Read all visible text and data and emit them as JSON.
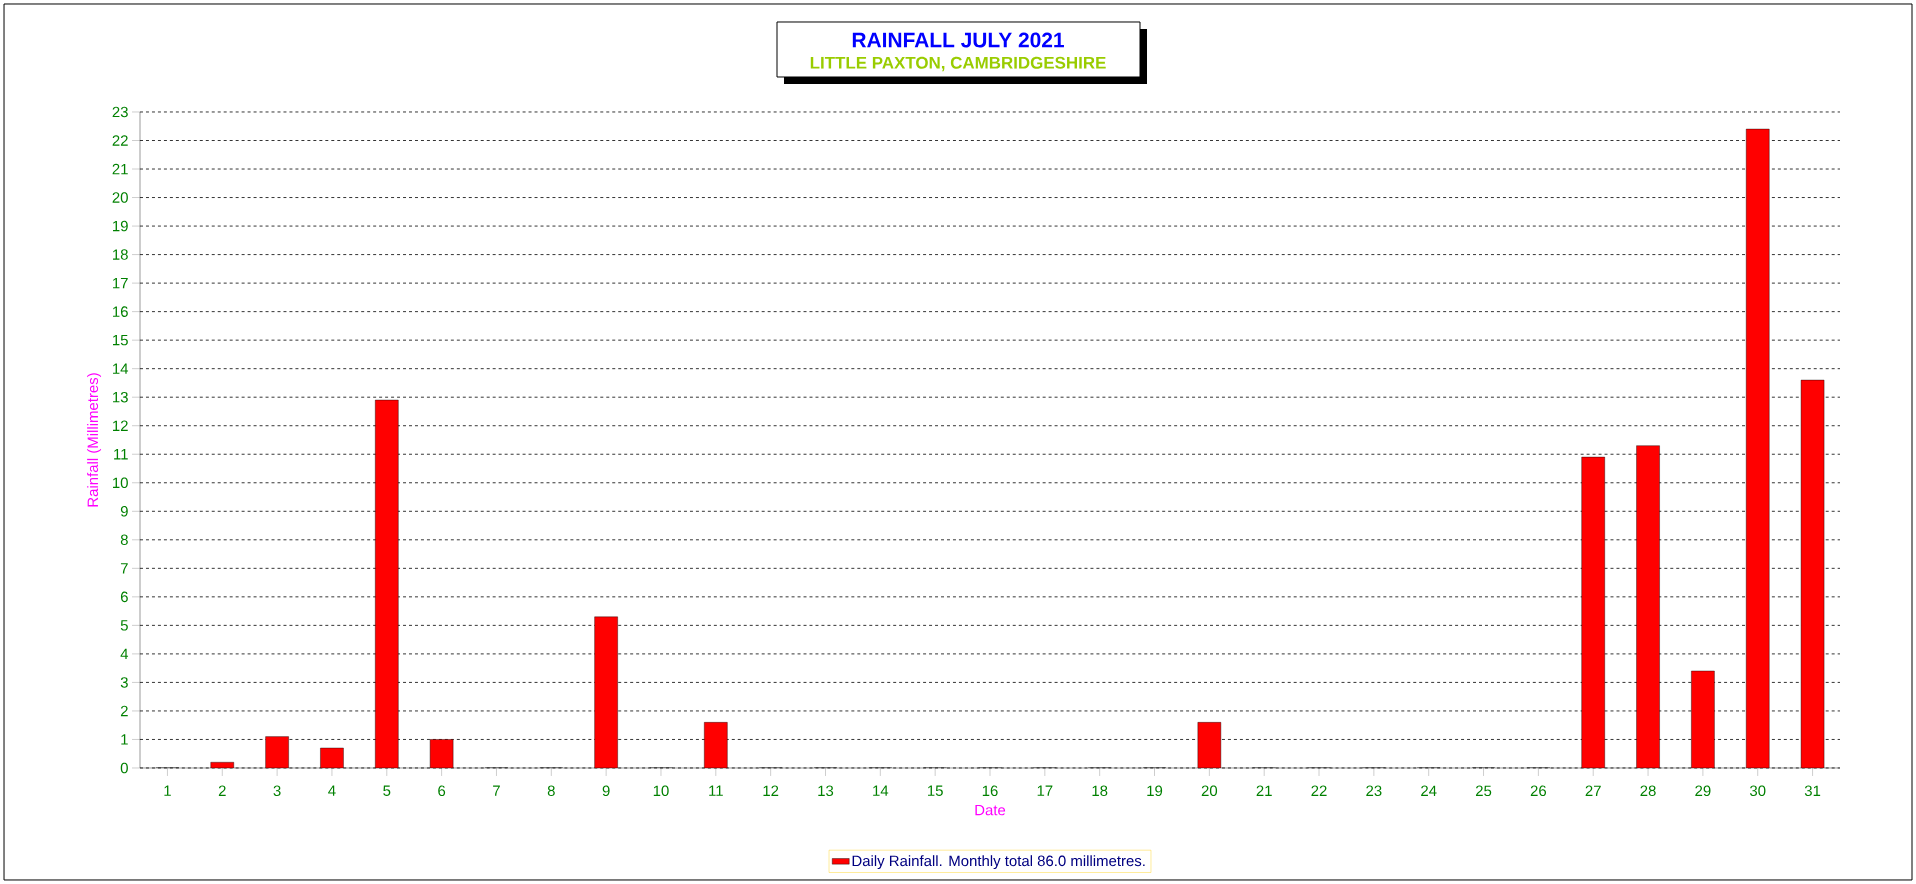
{
  "chart_data": {
    "type": "bar",
    "title": "RAINFALL   JULY 2021",
    "subtitle": "LITTLE PAXTON, CAMBRIDGESHIRE",
    "xlabel": "Date",
    "ylabel": "Rainfall  (Millimetres)",
    "categories": [
      "1",
      "2",
      "3",
      "4",
      "5",
      "6",
      "7",
      "8",
      "9",
      "10",
      "11",
      "12",
      "13",
      "14",
      "15",
      "16",
      "17",
      "18",
      "19",
      "20",
      "21",
      "22",
      "23",
      "24",
      "25",
      "26",
      "27",
      "28",
      "29",
      "30",
      "31"
    ],
    "series": [
      {
        "name": "Daily Rainfall. Monthly total 86.0 millimetres.",
        "color": "#ff0000",
        "values": [
          0,
          0.2,
          1.1,
          0.7,
          12.9,
          1.0,
          0,
          0,
          5.3,
          0,
          1.6,
          0,
          0,
          0,
          0,
          0,
          0,
          0,
          0,
          1.6,
          0,
          0,
          0,
          0,
          0,
          0,
          10.9,
          11.3,
          3.4,
          22.4,
          13.6
        ]
      }
    ],
    "ylim": [
      0,
      23
    ],
    "yticks": [
      0,
      1,
      2,
      3,
      4,
      5,
      6,
      7,
      8,
      9,
      10,
      11,
      12,
      13,
      14,
      15,
      16,
      17,
      18,
      19,
      20,
      21,
      22,
      23
    ],
    "grid": "y",
    "legend": "bottom"
  }
}
